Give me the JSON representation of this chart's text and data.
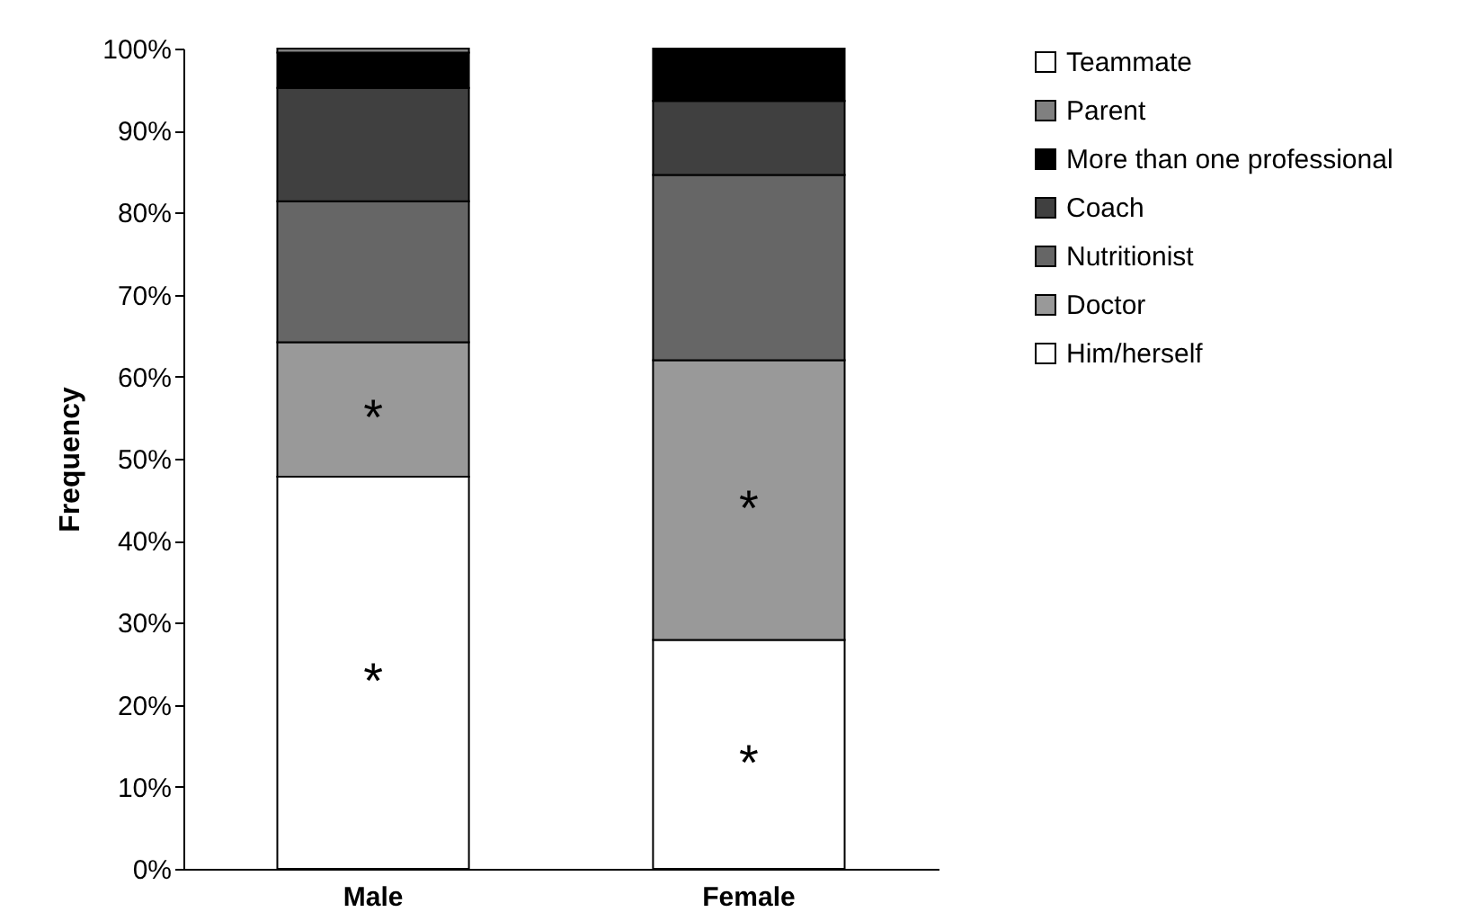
{
  "chart_data": {
    "type": "bar",
    "stacked": true,
    "ylabel": "Frequency",
    "categories": [
      "Male",
      "Female"
    ],
    "series": [
      {
        "name": "Him/herself",
        "color": "#ffffff",
        "values": [
          47.8,
          27.9
        ]
      },
      {
        "name": "Doctor",
        "color": "#999999",
        "values": [
          16.4,
          34.1
        ]
      },
      {
        "name": "Nutritionist",
        "color": "#666666",
        "values": [
          17.2,
          22.6
        ]
      },
      {
        "name": "Coach",
        "color": "#404040",
        "values": [
          13.8,
          9
        ]
      },
      {
        "name": "More than one professional",
        "color": "#000000",
        "values": [
          4.3,
          6.4
        ]
      },
      {
        "name": "Parent",
        "color": "#808080",
        "values": [
          0.5,
          0
        ]
      },
      {
        "name": "Teammate",
        "color": "#ffffff",
        "values": [
          0,
          0
        ]
      }
    ],
    "ylim": [
      0,
      100
    ],
    "yticks": [
      {
        "value": 0,
        "label": "0%"
      },
      {
        "value": 10,
        "label": "10%"
      },
      {
        "value": 20,
        "label": "20%"
      },
      {
        "value": 30,
        "label": "30%"
      },
      {
        "value": 40,
        "label": "40%"
      },
      {
        "value": 50,
        "label": "50%"
      },
      {
        "value": 60,
        "label": "60%"
      },
      {
        "value": 70,
        "label": "70%"
      },
      {
        "value": 80,
        "label": "80%"
      },
      {
        "value": 90,
        "label": "90%"
      },
      {
        "value": 100,
        "label": "100%"
      }
    ],
    "annotations": [
      "*",
      "*",
      "*",
      "*"
    ],
    "legend": "right",
    "grid": false
  }
}
